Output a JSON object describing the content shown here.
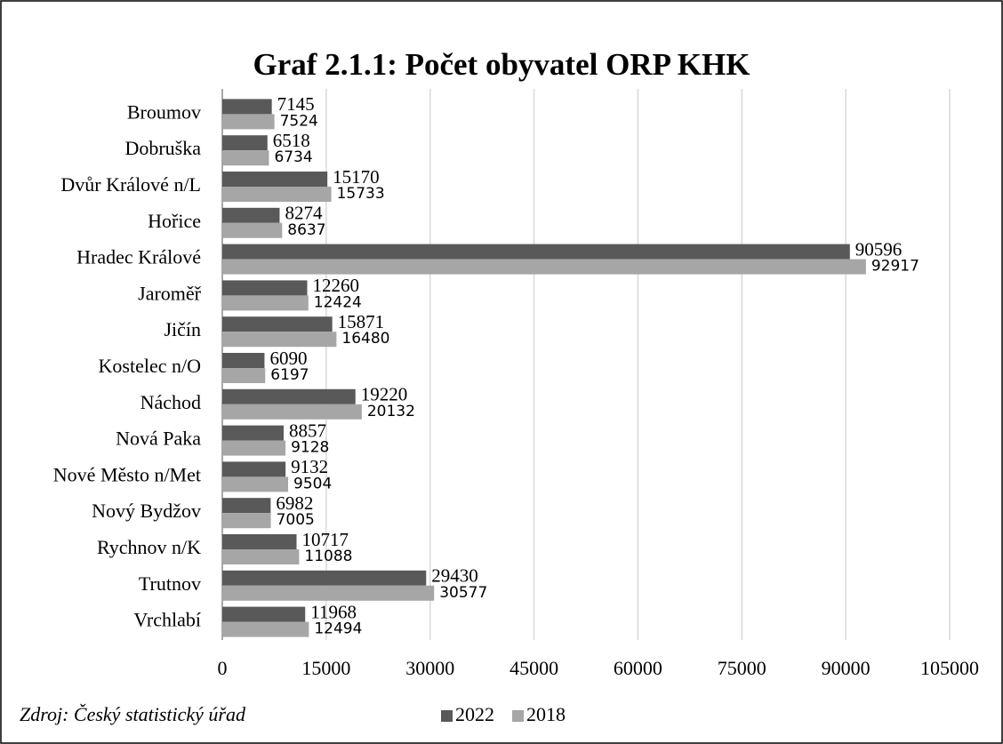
{
  "chart_data": {
    "type": "barh",
    "title": "Graf 2.1.1: Počet obyvatel ORP KHK",
    "categories": [
      "Broumov",
      "Dobruška",
      "Dvůr Králové n/L",
      "Hořice",
      "Hradec Králové",
      "Jaroměř",
      "Jičín",
      "Kostelec n/O",
      "Náchod",
      "Nová Paka",
      "Nové Město n/Met",
      "Nový Bydžov",
      "Rychnov n/K",
      "Trutnov",
      "Vrchlabí"
    ],
    "series": [
      {
        "name": "2022",
        "color": "#595959",
        "values": [
          7145,
          6518,
          15170,
          8274,
          90596,
          12260,
          15871,
          6090,
          19220,
          8857,
          9132,
          6982,
          10717,
          29430,
          11968
        ]
      },
      {
        "name": "2018",
        "color": "#a6a6a6",
        "values": [
          7524,
          6734,
          15733,
          8637,
          92917,
          12424,
          16480,
          6197,
          20132,
          9128,
          9504,
          7005,
          11088,
          30577,
          12494
        ]
      }
    ],
    "xlim": [
      0,
      105000
    ],
    "xticks": [
      0,
      15000,
      30000,
      45000,
      60000,
      75000,
      90000,
      105000
    ],
    "grid": true,
    "legend": "bottom",
    "source": "Zdroj: Český statistický úřad"
  }
}
